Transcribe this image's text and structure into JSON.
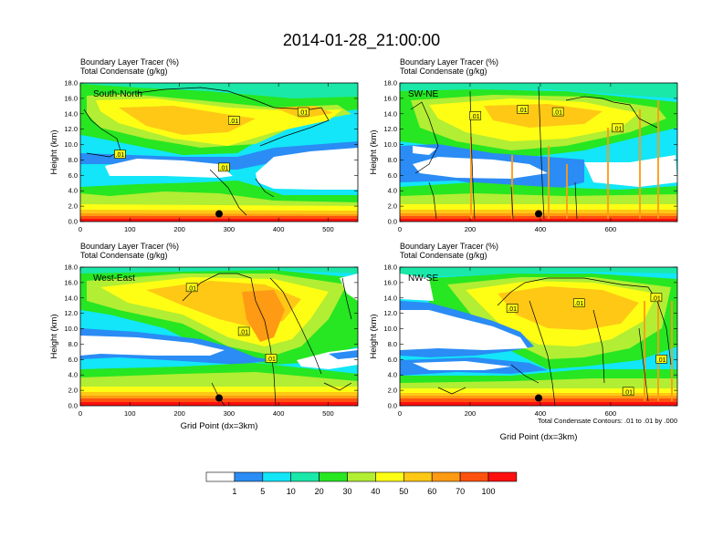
{
  "title": "2014-01-28_21:00:00",
  "chart_data": {
    "type": "heatmap",
    "series_label_1": "Boundary Layer Tracer   (%)",
    "series_label_2": "Total Condensate   (g/kg)",
    "ylabel": "Height (km)",
    "xlabel": "Grid Point (dx=3km)",
    "ylim": [
      0,
      18
    ],
    "yticks": [
      "0.0",
      "2.0",
      "4.0",
      "6.0",
      "8.0",
      "10.0",
      "12.0",
      "14.0",
      "16.0",
      "18.0"
    ],
    "contour_note": "Total Condensate Contours: .01 to .01 by .000",
    "contour_level": ".01",
    "panels": [
      {
        "name": "South-North",
        "xlim": [
          0,
          560
        ],
        "xticks": [
          "0",
          "100",
          "200",
          "300",
          "400",
          "500"
        ],
        "xtick_values": [
          0,
          100,
          200,
          300,
          400,
          500
        ],
        "marker_x": 280,
        "marker_y": 1.0,
        "contour_labels": [
          {
            "x": 310,
            "y": 13.1
          },
          {
            "x": 450,
            "y": 14.2
          },
          {
            "x": 80,
            "y": 8.7
          },
          {
            "x": 290,
            "y": 7.0
          }
        ]
      },
      {
        "name": "SW-NE",
        "xlim": [
          0,
          790
        ],
        "xticks": [
          "0",
          "200",
          "400",
          "600"
        ],
        "xtick_values": [
          0,
          200,
          400,
          600
        ],
        "marker_x": 395,
        "marker_y": 1.0,
        "contour_labels": [
          {
            "x": 215,
            "y": 13.7
          },
          {
            "x": 350,
            "y": 14.5
          },
          {
            "x": 450,
            "y": 14.2
          },
          {
            "x": 620,
            "y": 12.1
          }
        ]
      },
      {
        "name": "West-East",
        "xlim": [
          0,
          560
        ],
        "xticks": [
          "0",
          "100",
          "200",
          "300",
          "400",
          "500"
        ],
        "xtick_values": [
          0,
          100,
          200,
          300,
          400,
          500
        ],
        "marker_x": 280,
        "marker_y": 1.0,
        "contour_labels": [
          {
            "x": 225,
            "y": 15.3
          },
          {
            "x": 330,
            "y": 9.6
          },
          {
            "x": 385,
            "y": 6.1
          }
        ]
      },
      {
        "name": "NW-SE",
        "xlim": [
          0,
          790
        ],
        "xticks": [
          "0",
          "200",
          "400",
          "600"
        ],
        "xtick_values": [
          0,
          200,
          400,
          600
        ],
        "marker_x": 395,
        "marker_y": 1.0,
        "contour_labels": [
          {
            "x": 320,
            "y": 12.6
          },
          {
            "x": 510,
            "y": 13.3
          },
          {
            "x": 730,
            "y": 14.0
          },
          {
            "x": 745,
            "y": 6.0
          },
          {
            "x": 650,
            "y": 1.8
          }
        ]
      }
    ],
    "colorbar": {
      "labels": [
        "1",
        "5",
        "10",
        "20",
        "30",
        "40",
        "50",
        "60",
        "70",
        "100"
      ],
      "colors": [
        "#ffffff",
        "#2a8cf4",
        "#12e6f8",
        "#1ae8a8",
        "#27e622",
        "#b2ee33",
        "#fefe14",
        "#fec815",
        "#fe9a13",
        "#fd520f",
        "#fe0f0f"
      ]
    }
  }
}
